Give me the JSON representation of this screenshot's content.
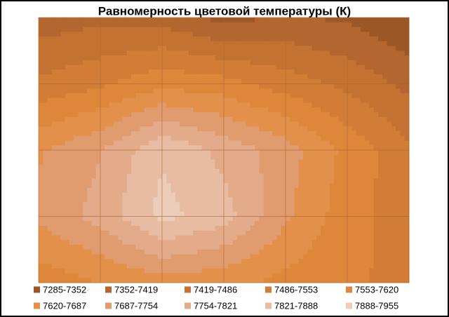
{
  "chart_data": {
    "type": "contour",
    "title": "Равномерность  цветовой температуры (К)",
    "z": [
      [
        7380,
        7400,
        7390,
        7330,
        7360,
        7340,
        7290
      ],
      [
        7500,
        7540,
        7600,
        7580,
        7520,
        7470,
        7400
      ],
      [
        7680,
        7750,
        7880,
        7800,
        7720,
        7600,
        7500
      ],
      [
        7700,
        7780,
        7910,
        7850,
        7700,
        7580,
        7520
      ],
      [
        7580,
        7620,
        7660,
        7640,
        7600,
        7560,
        7540
      ]
    ],
    "levels": [
      7285,
      7352,
      7419,
      7486,
      7553,
      7620,
      7687,
      7754,
      7821,
      7888,
      7955
    ],
    "bands": [
      {
        "name": "7285-7352",
        "color": "#9b5726"
      },
      {
        "name": "7352-7419",
        "color": "#b3672e"
      },
      {
        "name": "7419-7486",
        "color": "#c47232"
      },
      {
        "name": "7486-7553",
        "color": "#d27d36"
      },
      {
        "name": "7553-7620",
        "color": "#dd873b"
      },
      {
        "name": "7620-7687",
        "color": "#e2904a"
      },
      {
        "name": "7687-7754",
        "color": "#e09c6e"
      },
      {
        "name": "7754-7821",
        "color": "#e3ab8a"
      },
      {
        "name": "7821-7888",
        "color": "#e8bca2"
      },
      {
        "name": "7888-7955",
        "color": "#eccdb9"
      }
    ],
    "grid": true
  }
}
